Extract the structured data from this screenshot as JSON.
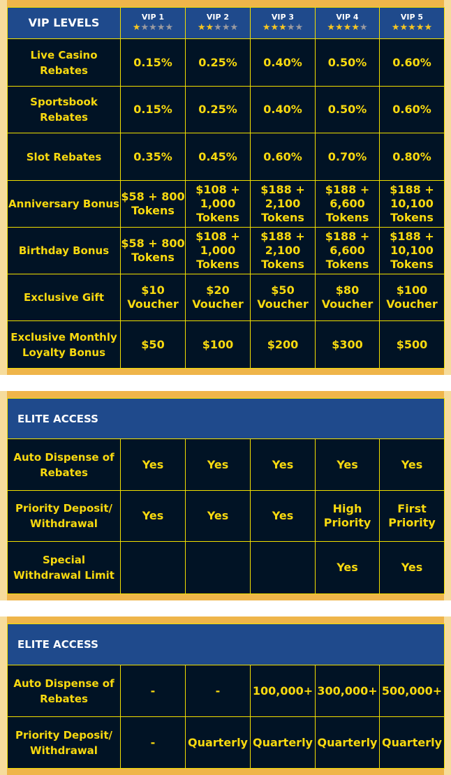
{
  "vip_table": {
    "header": "VIP LEVELS",
    "levels": [
      {
        "label": "VIP 1",
        "stars": 1
      },
      {
        "label": "VIP 2",
        "stars": 2
      },
      {
        "label": "VIP 3",
        "stars": 3
      },
      {
        "label": "VIP 4",
        "stars": 4
      },
      {
        "label": "VIP 5",
        "stars": 5
      }
    ],
    "rows": [
      {
        "label": "Live Casino Rebates",
        "values": [
          "0.15%",
          "0.25%",
          "0.40%",
          "0.50%",
          "0.60%"
        ]
      },
      {
        "label": "Sportsbook Rebates",
        "values": [
          "0.15%",
          "0.25%",
          "0.40%",
          "0.50%",
          "0.60%"
        ]
      },
      {
        "label": "Slot Rebates",
        "values": [
          "0.35%",
          "0.45%",
          "0.60%",
          "0.70%",
          "0.80%"
        ]
      },
      {
        "label": "Anniversary Bonus",
        "values": [
          "$58 + 800 Tokens",
          "$108 + 1,000 Tokens",
          "$188 + 2,100 Tokens",
          "$188 + 6,600 Tokens",
          "$188 + 10,100 Tokens"
        ]
      },
      {
        "label": "Birthday Bonus",
        "values": [
          "$58 + 800 Tokens",
          "$108 + 1,000 Tokens",
          "$188 + 2,100 Tokens",
          "$188 + 6,600 Tokens",
          "$188 + 10,100 Tokens"
        ]
      },
      {
        "label": "Exclusive Gift",
        "values": [
          "$10 Voucher",
          "$20 Voucher",
          "$50 Voucher",
          "$80 Voucher",
          "$100 Voucher"
        ]
      },
      {
        "label": "Exclusive Monthly Loyalty Bonus",
        "values": [
          "$50",
          "$100",
          "$200",
          "$300",
          "$500"
        ]
      }
    ]
  },
  "elite1": {
    "header": "ELITE ACCESS",
    "rows": [
      {
        "label": "Auto Dispense of Rebates",
        "values": [
          "Yes",
          "Yes",
          "Yes",
          "Yes",
          "Yes"
        ]
      },
      {
        "label": "Priority Deposit/ Withdrawal",
        "values": [
          "Yes",
          "Yes",
          "Yes",
          "High Priority",
          "First Priority"
        ]
      },
      {
        "label": "Special Withdrawal Limit",
        "values": [
          "",
          "",
          "",
          "Yes",
          "Yes"
        ]
      }
    ]
  },
  "elite2": {
    "header": "ELITE ACCESS",
    "rows": [
      {
        "label": "Auto Dispense of Rebates",
        "values": [
          "-",
          "-",
          "100,000+",
          "300,000+",
          "500,000+"
        ]
      },
      {
        "label": "Priority Deposit/ Withdrawal",
        "values": [
          "-",
          "Quarterly",
          "Quarterly",
          "Quarterly",
          "Quarterly"
        ]
      }
    ]
  },
  "colors": {
    "gold_frame": "#efb54a",
    "header_blue": "#1f4a8c",
    "cell_navy": "#011325",
    "text_yellow": "#f8d90f",
    "grid": "#f2e000"
  }
}
